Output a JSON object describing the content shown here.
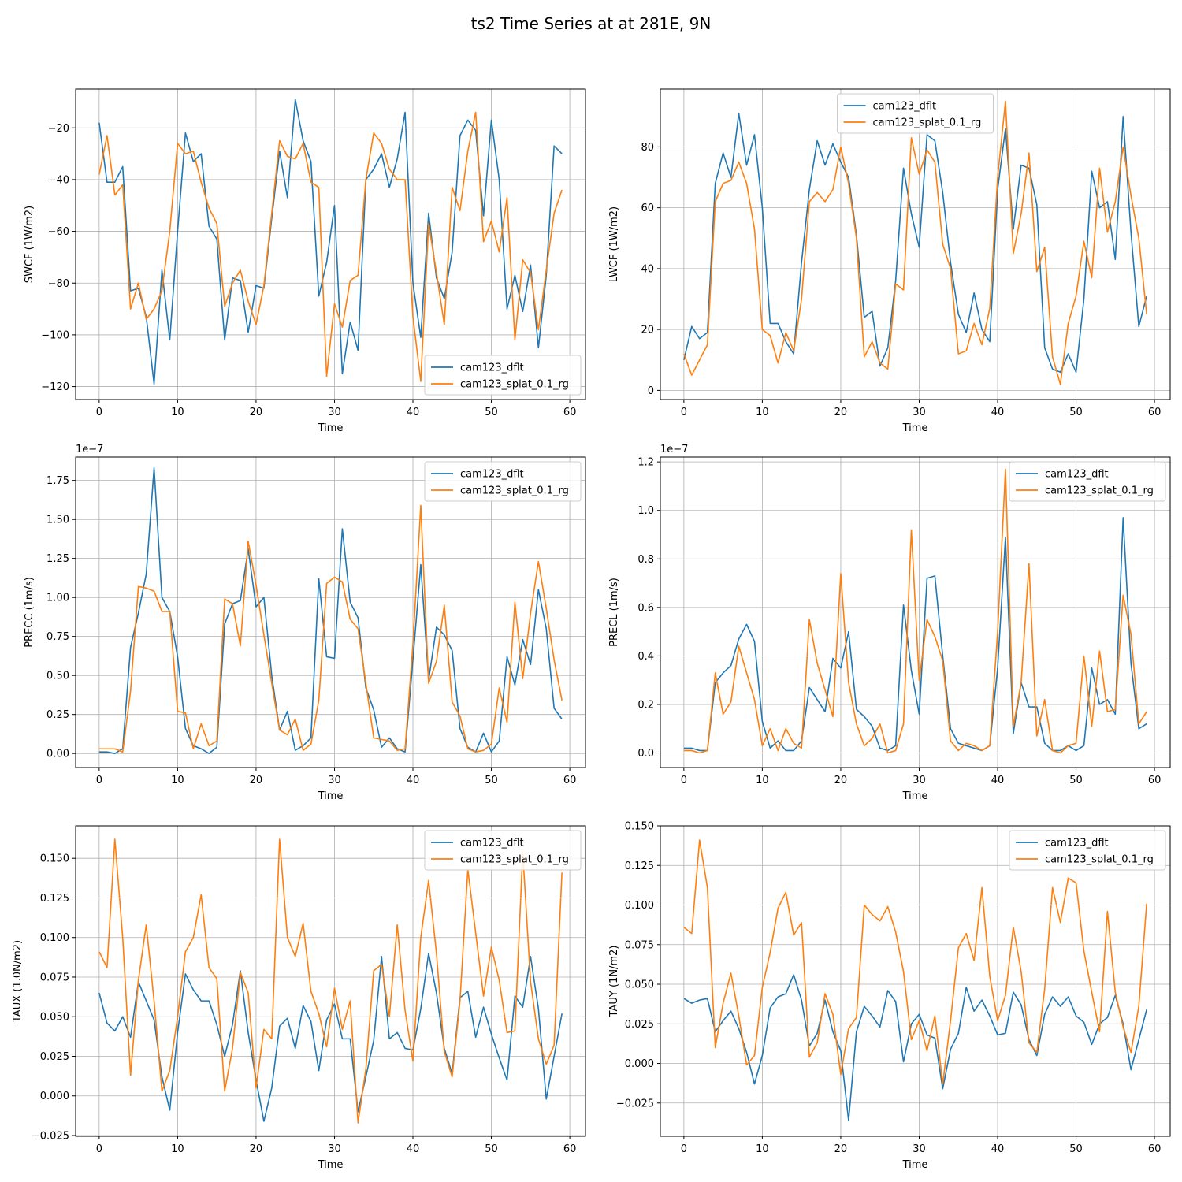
{
  "figure": {
    "suptitle": "ts2 Time Series at at 281E, 9N",
    "colors": {
      "series_a": "#1f77b4",
      "series_b": "#ff7f0e",
      "grid": "#b0b0b0"
    }
  },
  "chart_data": [
    {
      "type": "line",
      "ylabel": "SWCF (1W/m2)",
      "xlabel": "Time",
      "xlim": [
        -3,
        62
      ],
      "ylim": [
        -125,
        -5
      ],
      "xticks": [
        0,
        10,
        20,
        30,
        40,
        50,
        60
      ],
      "yticks": [
        -120,
        -100,
        -80,
        -60,
        -40,
        -20
      ],
      "ytick_labels": [
        "−120",
        "−100",
        "−80",
        "−60",
        "−40",
        "−20"
      ],
      "xtick_labels": [
        "0",
        "10",
        "20",
        "30",
        "40",
        "50",
        "60"
      ],
      "offset_text": "",
      "legend_loc": "lower-right",
      "series": [
        {
          "name": "cam123_dflt",
          "values": [
            -18,
            -41,
            -41,
            -35,
            -83,
            -82,
            -93,
            -119,
            -75,
            -102,
            -60,
            -22,
            -33,
            -30,
            -58,
            -63,
            -102,
            -78,
            -79,
            -99,
            -81,
            -82,
            -55,
            -29,
            -47,
            -9,
            -25,
            -33,
            -85,
            -72,
            -50,
            -115,
            -95,
            -106,
            -40,
            -36,
            -30,
            -43,
            -32,
            -14,
            -80,
            -101,
            -53,
            -78,
            -86,
            -68,
            -23,
            -17,
            -21,
            -54,
            -17,
            -40,
            -90,
            -77,
            -91,
            -73,
            -105,
            -77,
            -27,
            -30
          ]
        },
        {
          "name": "cam123_splat_0.1_rg",
          "values": [
            -38,
            -23,
            -46,
            -42,
            -90,
            -80,
            -94,
            -90,
            -83,
            -60,
            -26,
            -30,
            -29,
            -41,
            -51,
            -57,
            -89,
            -80,
            -75,
            -87,
            -96,
            -81,
            -53,
            -25,
            -31,
            -32,
            -26,
            -41,
            -43,
            -116,
            -88,
            -97,
            -79,
            -77,
            -40,
            -22,
            -26,
            -36,
            -40,
            -40,
            -93,
            -118,
            -57,
            -76,
            -96,
            -43,
            -52,
            -29,
            -14,
            -64,
            -56,
            -68,
            -47,
            -102,
            -71,
            -76,
            -98,
            -75,
            -53,
            -44
          ]
        }
      ]
    },
    {
      "type": "line",
      "ylabel": "LWCF (1W/m2)",
      "xlabel": "Time",
      "xlim": [
        -3,
        62
      ],
      "ylim": [
        -3,
        99
      ],
      "xticks": [
        0,
        10,
        20,
        30,
        40,
        50,
        60
      ],
      "yticks": [
        0,
        20,
        40,
        60,
        80
      ],
      "ytick_labels": [
        "0",
        "20",
        "40",
        "60",
        "80"
      ],
      "xtick_labels": [
        "0",
        "10",
        "20",
        "30",
        "40",
        "50",
        "60"
      ],
      "offset_text": "",
      "legend_loc": "upper-center",
      "series": [
        {
          "name": "cam123_dflt",
          "values": [
            10,
            21,
            17,
            19,
            68,
            78,
            70,
            91,
            74,
            84,
            60,
            22,
            22,
            16,
            12,
            42,
            66,
            82,
            74,
            81,
            75,
            70,
            51,
            24,
            26,
            8,
            14,
            36,
            73,
            58,
            47,
            84,
            82,
            65,
            42,
            25,
            19,
            32,
            20,
            16,
            66,
            86,
            53,
            74,
            73,
            61,
            14,
            7,
            6,
            12,
            6,
            30,
            72,
            60,
            62,
            43,
            90,
            52,
            21,
            31
          ]
        },
        {
          "name": "cam123_splat_0.1_rg",
          "values": [
            12,
            5,
            10,
            15,
            62,
            68,
            69,
            75,
            68,
            53,
            20,
            18,
            9,
            19,
            13,
            30,
            62,
            65,
            62,
            66,
            80,
            68,
            50,
            11,
            16,
            9,
            7,
            35,
            33,
            83,
            71,
            79,
            75,
            48,
            40,
            12,
            13,
            22,
            15,
            27,
            70,
            95,
            45,
            58,
            78,
            39,
            47,
            11,
            2,
            22,
            31,
            49,
            37,
            73,
            52,
            62,
            80,
            64,
            50,
            25
          ]
        }
      ]
    },
    {
      "type": "line",
      "ylabel": "PRECC (1m/s)",
      "xlabel": "Time",
      "xlim": [
        -3,
        62
      ],
      "ylim": [
        -0.09,
        1.9
      ],
      "xticks": [
        0,
        10,
        20,
        30,
        40,
        50,
        60
      ],
      "yticks": [
        0,
        0.25,
        0.5,
        0.75,
        1.0,
        1.25,
        1.5,
        1.75
      ],
      "ytick_labels": [
        "0.00",
        "0.25",
        "0.50",
        "0.75",
        "1.00",
        "1.25",
        "1.50",
        "1.75"
      ],
      "xtick_labels": [
        "0",
        "10",
        "20",
        "30",
        "40",
        "50",
        "60"
      ],
      "offset_text": "1e−7",
      "legend_loc": "upper-right",
      "series": [
        {
          "name": "cam123_dflt",
          "values": [
            0.01,
            0.01,
            0.0,
            0.03,
            0.68,
            0.9,
            1.15,
            1.83,
            1.0,
            0.91,
            0.62,
            0.16,
            0.05,
            0.03,
            0.0,
            0.04,
            0.83,
            0.96,
            0.98,
            1.31,
            0.94,
            1.0,
            0.5,
            0.15,
            0.27,
            0.02,
            0.05,
            0.1,
            1.12,
            0.62,
            0.61,
            1.44,
            0.97,
            0.87,
            0.42,
            0.28,
            0.04,
            0.1,
            0.03,
            0.01,
            0.6,
            1.21,
            0.47,
            0.81,
            0.76,
            0.66,
            0.16,
            0.04,
            0.01,
            0.13,
            0.01,
            0.08,
            0.62,
            0.44,
            0.73,
            0.57,
            1.05,
            0.8,
            0.29,
            0.22
          ]
        },
        {
          "name": "cam123_splat_0.1_rg",
          "values": [
            0.03,
            0.03,
            0.03,
            0.01,
            0.4,
            1.07,
            1.06,
            1.04,
            0.91,
            0.91,
            0.27,
            0.26,
            0.03,
            0.19,
            0.05,
            0.08,
            0.99,
            0.96,
            0.69,
            1.36,
            1.08,
            0.76,
            0.45,
            0.15,
            0.12,
            0.22,
            0.02,
            0.06,
            0.34,
            1.09,
            1.13,
            1.1,
            0.86,
            0.8,
            0.45,
            0.1,
            0.09,
            0.08,
            0.02,
            0.03,
            0.7,
            1.59,
            0.45,
            0.59,
            0.95,
            0.33,
            0.24,
            0.03,
            0.01,
            0.02,
            0.06,
            0.42,
            0.2,
            0.97,
            0.48,
            0.9,
            1.23,
            0.93,
            0.6,
            0.34
          ]
        }
      ]
    },
    {
      "type": "line",
      "ylabel": "PRECL (1m/s)",
      "xlabel": "Time",
      "xlim": [
        -3,
        62
      ],
      "ylim": [
        -0.06,
        1.22
      ],
      "xticks": [
        0,
        10,
        20,
        30,
        40,
        50,
        60
      ],
      "yticks": [
        0,
        0.2,
        0.4,
        0.6,
        0.8,
        1.0,
        1.2
      ],
      "ytick_labels": [
        "0.0",
        "0.2",
        "0.4",
        "0.6",
        "0.8",
        "1.0",
        "1.2"
      ],
      "xtick_labels": [
        "0",
        "10",
        "20",
        "30",
        "40",
        "50",
        "60"
      ],
      "offset_text": "1e−7",
      "legend_loc": "upper-right",
      "series": [
        {
          "name": "cam123_dflt",
          "values": [
            0.02,
            0.02,
            0.01,
            0.01,
            0.29,
            0.33,
            0.36,
            0.47,
            0.53,
            0.46,
            0.13,
            0.02,
            0.05,
            0.01,
            0.01,
            0.05,
            0.27,
            0.22,
            0.17,
            0.39,
            0.35,
            0.5,
            0.18,
            0.15,
            0.11,
            0.02,
            0.01,
            0.03,
            0.61,
            0.34,
            0.16,
            0.72,
            0.73,
            0.4,
            0.1,
            0.04,
            0.03,
            0.02,
            0.01,
            0.03,
            0.35,
            0.89,
            0.08,
            0.29,
            0.19,
            0.19,
            0.04,
            0.01,
            0.01,
            0.03,
            0.01,
            0.03,
            0.35,
            0.2,
            0.22,
            0.16,
            0.97,
            0.37,
            0.1,
            0.12
          ]
        },
        {
          "name": "cam123_splat_0.1_rg",
          "values": [
            0.01,
            0.01,
            0.0,
            0.01,
            0.33,
            0.16,
            0.21,
            0.44,
            0.33,
            0.22,
            0.03,
            0.1,
            0.01,
            0.1,
            0.04,
            0.02,
            0.55,
            0.37,
            0.26,
            0.15,
            0.74,
            0.29,
            0.12,
            0.03,
            0.06,
            0.12,
            0.0,
            0.01,
            0.12,
            0.92,
            0.3,
            0.55,
            0.48,
            0.38,
            0.05,
            0.01,
            0.04,
            0.03,
            0.01,
            0.03,
            0.5,
            1.17,
            0.11,
            0.29,
            0.78,
            0.07,
            0.22,
            0.01,
            0.0,
            0.03,
            0.04,
            0.4,
            0.11,
            0.42,
            0.17,
            0.18,
            0.65,
            0.49,
            0.12,
            0.17
          ]
        }
      ]
    },
    {
      "type": "line",
      "ylabel": "TAUX (1.0N/m2)",
      "xlabel": "Time",
      "xlim": [
        -3,
        62
      ],
      "ylim": [
        -0.0255,
        0.1705
      ],
      "xticks": [
        0,
        10,
        20,
        30,
        40,
        50,
        60
      ],
      "yticks": [
        -0.025,
        0,
        0.025,
        0.05,
        0.075,
        0.1,
        0.125,
        0.15
      ],
      "ytick_labels": [
        "−0.025",
        "0.000",
        "0.025",
        "0.050",
        "0.075",
        "0.100",
        "0.125",
        "0.150"
      ],
      "xtick_labels": [
        "0",
        "10",
        "20",
        "30",
        "40",
        "50",
        "60"
      ],
      "offset_text": "",
      "legend_loc": "upper-right",
      "series": [
        {
          "name": "cam123_dflt",
          "values": [
            0.065,
            0.046,
            0.041,
            0.05,
            0.037,
            0.072,
            0.06,
            0.048,
            0.012,
            -0.009,
            0.04,
            0.077,
            0.067,
            0.06,
            0.06,
            0.045,
            0.025,
            0.045,
            0.079,
            0.04,
            0.01,
            -0.016,
            0.005,
            0.044,
            0.049,
            0.03,
            0.057,
            0.047,
            0.016,
            0.048,
            0.058,
            0.036,
            0.036,
            -0.01,
            0.012,
            0.035,
            0.088,
            0.036,
            0.04,
            0.03,
            0.029,
            0.055,
            0.09,
            0.065,
            0.03,
            0.014,
            0.062,
            0.066,
            0.037,
            0.056,
            0.039,
            0.024,
            0.01,
            0.063,
            0.056,
            0.088,
            0.055,
            -0.002,
            0.025,
            0.052
          ]
        },
        {
          "name": "cam123_splat_0.1_rg",
          "values": [
            0.091,
            0.081,
            0.162,
            0.1,
            0.013,
            0.073,
            0.108,
            0.06,
            0.003,
            0.016,
            0.05,
            0.091,
            0.1,
            0.127,
            0.081,
            0.074,
            0.003,
            0.03,
            0.078,
            0.065,
            0.005,
            0.042,
            0.036,
            0.162,
            0.1,
            0.088,
            0.109,
            0.066,
            0.052,
            0.031,
            0.068,
            0.042,
            0.06,
            -0.017,
            0.017,
            0.079,
            0.083,
            0.05,
            0.108,
            0.054,
            0.022,
            0.1,
            0.136,
            0.09,
            0.028,
            0.012,
            0.06,
            0.143,
            0.103,
            0.063,
            0.094,
            0.073,
            0.04,
            0.041,
            0.154,
            0.072,
            0.036,
            0.02,
            0.032,
            0.141
          ]
        }
      ]
    },
    {
      "type": "line",
      "ylabel": "TAUY (1N/m2)",
      "xlabel": "Time",
      "xlim": [
        -3,
        62
      ],
      "ylim": [
        -0.046,
        0.15
      ],
      "xticks": [
        0,
        10,
        20,
        30,
        40,
        50,
        60
      ],
      "yticks": [
        -0.025,
        0,
        0.025,
        0.05,
        0.075,
        0.1,
        0.125,
        0.15
      ],
      "ytick_labels": [
        "−0.025",
        "0.000",
        "0.025",
        "0.050",
        "0.075",
        "0.100",
        "0.125",
        "0.150"
      ],
      "xtick_labels": [
        "0",
        "10",
        "20",
        "30",
        "40",
        "50",
        "60"
      ],
      "offset_text": "",
      "legend_loc": "upper-right",
      "series": [
        {
          "name": "cam123_dflt",
          "values": [
            0.041,
            0.038,
            0.04,
            0.041,
            0.02,
            0.027,
            0.033,
            0.022,
            0.007,
            -0.013,
            0.005,
            0.035,
            0.042,
            0.044,
            0.056,
            0.04,
            0.011,
            0.019,
            0.04,
            0.02,
            0.008,
            -0.036,
            0.02,
            0.036,
            0.03,
            0.023,
            0.046,
            0.039,
            0.001,
            0.025,
            0.031,
            0.018,
            0.016,
            -0.016,
            0.009,
            0.019,
            0.048,
            0.033,
            0.04,
            0.03,
            0.018,
            0.019,
            0.045,
            0.037,
            0.015,
            0.005,
            0.031,
            0.042,
            0.036,
            0.042,
            0.03,
            0.026,
            0.012,
            0.025,
            0.029,
            0.043,
            0.025,
            -0.004,
            0.015,
            0.034
          ]
        },
        {
          "name": "cam123_splat_0.1_rg",
          "values": [
            0.086,
            0.082,
            0.141,
            0.111,
            0.01,
            0.038,
            0.057,
            0.03,
            -0.001,
            0.005,
            0.048,
            0.07,
            0.098,
            0.108,
            0.081,
            0.089,
            0.004,
            0.013,
            0.044,
            0.031,
            -0.007,
            0.022,
            0.029,
            0.1,
            0.094,
            0.09,
            0.099,
            0.083,
            0.058,
            0.015,
            0.027,
            0.008,
            0.03,
            -0.013,
            0.027,
            0.073,
            0.082,
            0.065,
            0.111,
            0.055,
            0.027,
            0.043,
            0.086,
            0.058,
            0.013,
            0.007,
            0.047,
            0.111,
            0.089,
            0.117,
            0.114,
            0.071,
            0.045,
            0.02,
            0.096,
            0.045,
            0.023,
            0.007,
            0.036,
            0.101
          ]
        }
      ]
    }
  ]
}
